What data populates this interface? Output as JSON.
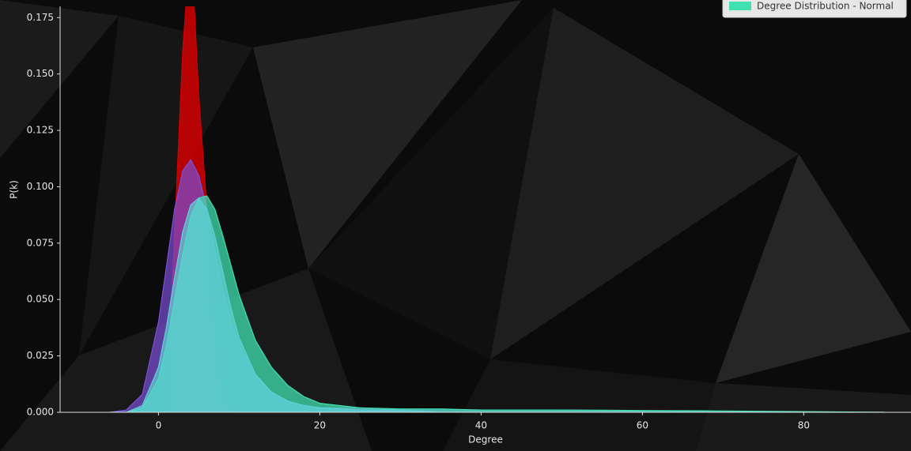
{
  "chart_data": {
    "type": "area",
    "xlabel": "Degree",
    "ylabel": "P(k)",
    "x": [
      -6,
      -4,
      -2,
      0,
      1,
      2,
      3,
      4,
      5,
      6,
      7,
      8,
      9,
      10,
      12,
      14,
      16,
      18,
      20,
      25,
      30,
      35,
      40,
      50,
      60,
      70,
      80,
      90
    ],
    "series": [
      {
        "color": "#d40000",
        "values": [
          0,
          0,
          0,
          0,
          0,
          0.08,
          0.16,
          0.21,
          0.14,
          0.09,
          0.03,
          0.005,
          0,
          0,
          0,
          0,
          0,
          0,
          0,
          0,
          0,
          0,
          0,
          0,
          0,
          0,
          0,
          0
        ]
      },
      {
        "color": "#7b4fd8",
        "values": [
          0,
          0.001,
          0.008,
          0.04,
          0.065,
          0.09,
          0.107,
          0.112,
          0.105,
          0.09,
          0.072,
          0.055,
          0.04,
          0.03,
          0.016,
          0.009,
          0.005,
          0.003,
          0.002,
          0.002,
          0.001,
          0.001,
          0.001,
          0.001,
          0.0005,
          0.0002,
          0,
          0
        ]
      },
      {
        "name": "Degree Distribution - Normal",
        "color": "#40e0b0",
        "values": [
          0,
          0,
          0.002,
          0.015,
          0.03,
          0.05,
          0.07,
          0.087,
          0.095,
          0.096,
          0.09,
          0.078,
          0.065,
          0.052,
          0.032,
          0.02,
          0.012,
          0.007,
          0.004,
          0.002,
          0.0015,
          0.0015,
          0.001,
          0.001,
          0.0008,
          0.0006,
          0.0003,
          0
        ]
      },
      {
        "color": "#5fd0d6",
        "values": [
          0,
          0,
          0.003,
          0.02,
          0.038,
          0.06,
          0.08,
          0.092,
          0.095,
          0.09,
          0.078,
          0.062,
          0.046,
          0.033,
          0.017,
          0.009,
          0.005,
          0.003,
          0.002,
          0.001,
          0.001,
          0,
          0,
          0,
          0,
          0,
          0,
          0
        ]
      }
    ],
    "xlim": [
      -12.2,
      93.3
    ],
    "xticks": [
      0,
      20,
      40,
      60,
      80
    ],
    "ylim": [
      0,
      0.18
    ],
    "yticks": [
      {
        "value": 0,
        "label": "0.000"
      },
      {
        "value": 0.025,
        "label": "0.025"
      },
      {
        "value": 0.05,
        "label": "0.050"
      },
      {
        "value": 0.075,
        "label": "0.075"
      },
      {
        "value": 0.1,
        "label": "0.100"
      },
      {
        "value": 0.125,
        "label": "0.125"
      },
      {
        "value": 0.15,
        "label": "0.150"
      },
      {
        "value": 0.175,
        "label": "0.175"
      }
    ],
    "legend": "upper right"
  }
}
